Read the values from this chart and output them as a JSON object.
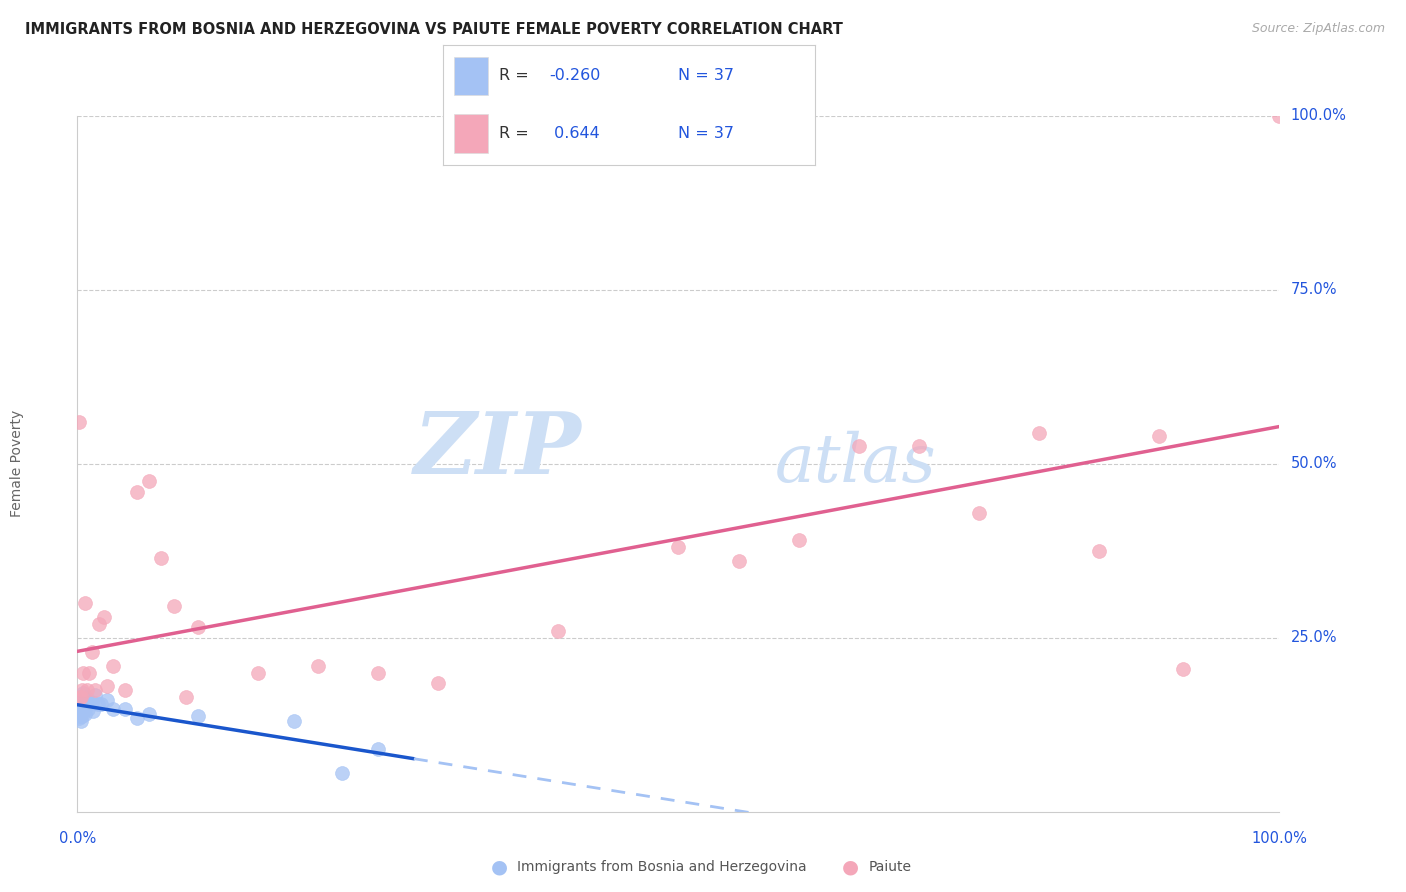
{
  "title": "IMMIGRANTS FROM BOSNIA AND HERZEGOVINA VS PAIUTE FEMALE POVERTY CORRELATION CHART",
  "source": "Source: ZipAtlas.com",
  "ylabel": "Female Poverty",
  "legend_label1": "Immigrants from Bosnia and Herzegovina",
  "legend_label2": "Paiute",
  "R1": -0.26,
  "N1": 37,
  "R2": 0.644,
  "N2": 37,
  "color_blue": "#a4c2f4",
  "color_pink": "#f4a7b9",
  "color_blue_line": "#1a56cc",
  "color_pink_line": "#e06090",
  "color_dashed": "#a4c2f4",
  "watermark_zip": "ZIP",
  "watermark_atlas": "atlas",
  "blue_points_x": [
    0.001,
    0.001,
    0.001,
    0.002,
    0.002,
    0.002,
    0.002,
    0.003,
    0.003,
    0.003,
    0.003,
    0.004,
    0.004,
    0.004,
    0.005,
    0.005,
    0.006,
    0.006,
    0.007,
    0.007,
    0.008,
    0.009,
    0.01,
    0.012,
    0.013,
    0.015,
    0.017,
    0.02,
    0.025,
    0.03,
    0.04,
    0.05,
    0.06,
    0.1,
    0.18,
    0.22,
    0.25
  ],
  "blue_points_y": [
    0.155,
    0.145,
    0.135,
    0.165,
    0.155,
    0.148,
    0.138,
    0.16,
    0.15,
    0.14,
    0.13,
    0.155,
    0.148,
    0.138,
    0.17,
    0.145,
    0.158,
    0.14,
    0.165,
    0.15,
    0.155,
    0.148,
    0.158,
    0.158,
    0.145,
    0.168,
    0.155,
    0.155,
    0.16,
    0.148,
    0.148,
    0.135,
    0.14,
    0.138,
    0.13,
    0.055,
    0.09
  ],
  "pink_points_x": [
    0.001,
    0.002,
    0.003,
    0.004,
    0.005,
    0.006,
    0.008,
    0.01,
    0.012,
    0.015,
    0.018,
    0.022,
    0.025,
    0.03,
    0.04,
    0.05,
    0.06,
    0.07,
    0.08,
    0.09,
    0.1,
    0.15,
    0.2,
    0.25,
    0.3,
    0.4,
    0.5,
    0.55,
    0.6,
    0.65,
    0.7,
    0.75,
    0.8,
    0.85,
    0.9,
    0.92,
    1.0
  ],
  "pink_points_y": [
    0.56,
    0.165,
    0.165,
    0.175,
    0.2,
    0.3,
    0.175,
    0.2,
    0.23,
    0.175,
    0.27,
    0.28,
    0.18,
    0.21,
    0.175,
    0.46,
    0.475,
    0.365,
    0.295,
    0.165,
    0.265,
    0.2,
    0.21,
    0.2,
    0.185,
    0.26,
    0.38,
    0.36,
    0.39,
    0.525,
    0.525,
    0.43,
    0.545,
    0.375,
    0.54,
    0.205,
    1.0
  ]
}
